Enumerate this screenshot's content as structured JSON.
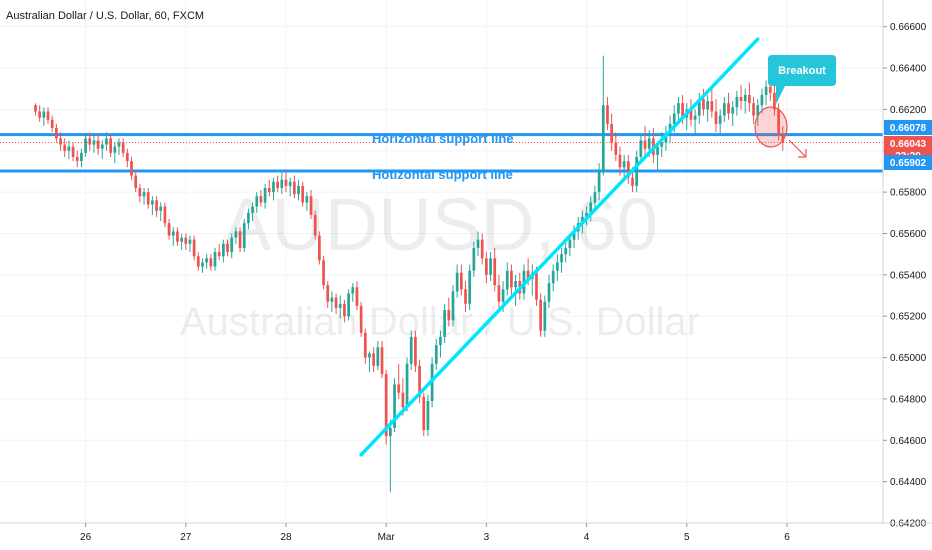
{
  "header": {
    "symbol_title": "Australian Dollar / U.S. Dollar, 60, FXCM"
  },
  "watermark": {
    "ticker": "AUDUSD, 60",
    "name": "Australian Dollar / U.S. Dollar"
  },
  "colors": {
    "up": "#26a69a",
    "down": "#ef5350",
    "support_line": "#2196f3",
    "trend_line": "#00e5ff",
    "breakout_callout": "#26c6da",
    "price_line": "#ef5350",
    "grid": "#f0f3fa"
  },
  "annotations": {
    "support_label_1": "Horizontal support line",
    "support_label_2": "Hotizontal support line",
    "breakout_label": "Breakout"
  },
  "price_badges": {
    "upper_support": "0.66078",
    "current_price": "0.66043",
    "countdown": "23:29",
    "lower_support": "0.65902"
  },
  "chart_data": {
    "type": "candlestick",
    "title": "Australian Dollar / U.S. Dollar, 60, FXCM",
    "xlabel": "",
    "ylabel": "",
    "ylim": [
      0.642,
      0.667
    ],
    "y_ticks": [
      "0.66600",
      "0.66400",
      "0.66200",
      "0.66000",
      "0.65800",
      "0.65600",
      "0.65400",
      "0.65200",
      "0.65000",
      "0.64800",
      "0.64600",
      "0.64400",
      "0.64200"
    ],
    "x_ticks": [
      {
        "label": "26",
        "x": 12
      },
      {
        "label": "27",
        "x": 36
      },
      {
        "label": "28",
        "x": 60
      },
      {
        "label": "Mar",
        "x": 84
      },
      {
        "label": "3",
        "x": 108
      },
      {
        "label": "4",
        "x": 132
      },
      {
        "label": "5",
        "x": 156
      },
      {
        "label": "6",
        "x": 180
      }
    ],
    "x_range": [
      -8.5,
      203
    ],
    "horizontal_lines": [
      0.66078,
      0.65902
    ],
    "trend_lines": [
      {
        "from": [
          78,
          0.6453
        ],
        "to": [
          173,
          0.6654
        ]
      }
    ],
    "grid": true,
    "candles": [
      [
        0.6622,
        0.6623,
        0.6617,
        0.6619
      ],
      [
        0.6619,
        0.6622,
        0.6614,
        0.6616
      ],
      [
        0.6616,
        0.6621,
        0.6612,
        0.6619
      ],
      [
        0.6619,
        0.6621,
        0.6613,
        0.6615
      ],
      [
        0.6615,
        0.6617,
        0.6609,
        0.6611
      ],
      [
        0.6611,
        0.6613,
        0.6604,
        0.6606
      ],
      [
        0.6606,
        0.6609,
        0.66,
        0.6603
      ],
      [
        0.6603,
        0.6606,
        0.6597,
        0.66
      ],
      [
        0.66,
        0.6605,
        0.6596,
        0.6602
      ],
      [
        0.6602,
        0.6604,
        0.6595,
        0.6597
      ],
      [
        0.6597,
        0.66,
        0.6592,
        0.6595
      ],
      [
        0.6595,
        0.6601,
        0.6592,
        0.6599
      ],
      [
        0.6599,
        0.6608,
        0.6597,
        0.6606
      ],
      [
        0.6606,
        0.6609,
        0.66,
        0.6603
      ],
      [
        0.6603,
        0.6608,
        0.6599,
        0.6605
      ],
      [
        0.6605,
        0.6608,
        0.6598,
        0.6601
      ],
      [
        0.6601,
        0.6605,
        0.6596,
        0.6603
      ],
      [
        0.6603,
        0.6609,
        0.66,
        0.6606
      ],
      [
        0.6606,
        0.6608,
        0.6597,
        0.6599
      ],
      [
        0.6599,
        0.6604,
        0.6594,
        0.6602
      ],
      [
        0.6602,
        0.6606,
        0.6598,
        0.6604
      ],
      [
        0.6604,
        0.6606,
        0.6597,
        0.6599
      ],
      [
        0.6599,
        0.6601,
        0.6592,
        0.6595
      ],
      [
        0.6595,
        0.6597,
        0.6586,
        0.6588
      ],
      [
        0.6588,
        0.659,
        0.658,
        0.6582
      ],
      [
        0.6582,
        0.6584,
        0.6575,
        0.6578
      ],
      [
        0.6578,
        0.6582,
        0.6574,
        0.658
      ],
      [
        0.658,
        0.6582,
        0.6572,
        0.6574
      ],
      [
        0.6574,
        0.6578,
        0.6569,
        0.6576
      ],
      [
        0.6576,
        0.6578,
        0.6568,
        0.6571
      ],
      [
        0.6571,
        0.6575,
        0.6566,
        0.6573
      ],
      [
        0.6573,
        0.6575,
        0.6563,
        0.6565
      ],
      [
        0.6565,
        0.6567,
        0.6557,
        0.6559
      ],
      [
        0.6559,
        0.6563,
        0.6554,
        0.6561
      ],
      [
        0.6561,
        0.6563,
        0.6554,
        0.6556
      ],
      [
        0.6556,
        0.656,
        0.6552,
        0.6558
      ],
      [
        0.6558,
        0.656,
        0.6552,
        0.6555
      ],
      [
        0.6555,
        0.6559,
        0.6551,
        0.6557
      ],
      [
        0.6557,
        0.6559,
        0.6547,
        0.6549
      ],
      [
        0.6549,
        0.6551,
        0.6542,
        0.6544
      ],
      [
        0.6544,
        0.6548,
        0.6541,
        0.6546
      ],
      [
        0.6546,
        0.655,
        0.6543,
        0.6548
      ],
      [
        0.6548,
        0.655,
        0.6542,
        0.6544
      ],
      [
        0.6544,
        0.6553,
        0.6542,
        0.6551
      ],
      [
        0.6551,
        0.6555,
        0.6547,
        0.6549
      ],
      [
        0.6549,
        0.6557,
        0.6546,
        0.6555
      ],
      [
        0.6555,
        0.6557,
        0.6549,
        0.6551
      ],
      [
        0.6551,
        0.656,
        0.6548,
        0.6558
      ],
      [
        0.6558,
        0.6563,
        0.6555,
        0.6561
      ],
      [
        0.6561,
        0.6563,
        0.6551,
        0.6553
      ],
      [
        0.6553,
        0.6567,
        0.6551,
        0.6565
      ],
      [
        0.6565,
        0.6572,
        0.6562,
        0.657
      ],
      [
        0.657,
        0.6575,
        0.6566,
        0.6573
      ],
      [
        0.6573,
        0.658,
        0.657,
        0.6578
      ],
      [
        0.6578,
        0.6581,
        0.6573,
        0.6575
      ],
      [
        0.6575,
        0.6584,
        0.6572,
        0.6582
      ],
      [
        0.6582,
        0.6586,
        0.6578,
        0.658
      ],
      [
        0.658,
        0.6587,
        0.6576,
        0.6585
      ],
      [
        0.6585,
        0.6588,
        0.658,
        0.6582
      ],
      [
        0.6582,
        0.659,
        0.6579,
        0.6586
      ],
      [
        0.6586,
        0.659,
        0.658,
        0.6583
      ],
      [
        0.6583,
        0.6587,
        0.6578,
        0.6585
      ],
      [
        0.6585,
        0.6588,
        0.6577,
        0.6579
      ],
      [
        0.6579,
        0.6586,
        0.6576,
        0.6583
      ],
      [
        0.6583,
        0.6585,
        0.6573,
        0.6575
      ],
      [
        0.6575,
        0.658,
        0.6571,
        0.6578
      ],
      [
        0.6578,
        0.6581,
        0.6567,
        0.6569
      ],
      [
        0.6569,
        0.6571,
        0.6557,
        0.6559
      ],
      [
        0.6559,
        0.6561,
        0.6545,
        0.6547
      ],
      [
        0.6547,
        0.6549,
        0.6533,
        0.6535
      ],
      [
        0.6535,
        0.6537,
        0.6524,
        0.6527
      ],
      [
        0.6527,
        0.6532,
        0.6522,
        0.6529
      ],
      [
        0.6529,
        0.6531,
        0.6521,
        0.6524
      ],
      [
        0.6524,
        0.653,
        0.6519,
        0.6526
      ],
      [
        0.6526,
        0.6528,
        0.6517,
        0.652
      ],
      [
        0.652,
        0.6533,
        0.6518,
        0.6531
      ],
      [
        0.6531,
        0.6536,
        0.6527,
        0.6534
      ],
      [
        0.6534,
        0.6537,
        0.6523,
        0.6525
      ],
      [
        0.6525,
        0.6527,
        0.651,
        0.6512
      ],
      [
        0.6512,
        0.6514,
        0.6497,
        0.65
      ],
      [
        0.65,
        0.6503,
        0.6493,
        0.6502
      ],
      [
        0.6502,
        0.6505,
        0.6493,
        0.6496
      ],
      [
        0.6496,
        0.6508,
        0.6494,
        0.6505
      ],
      [
        0.6505,
        0.6508,
        0.649,
        0.6492
      ],
      [
        0.6492,
        0.6494,
        0.6458,
        0.6462
      ],
      [
        0.6462,
        0.647,
        0.6435,
        0.6466
      ],
      [
        0.6466,
        0.649,
        0.6464,
        0.6487
      ],
      [
        0.6487,
        0.6497,
        0.648,
        0.6483
      ],
      [
        0.6483,
        0.649,
        0.6472,
        0.6476
      ],
      [
        0.6476,
        0.65,
        0.6474,
        0.6497
      ],
      [
        0.6497,
        0.6513,
        0.6494,
        0.651
      ],
      [
        0.651,
        0.6513,
        0.6493,
        0.6496
      ],
      [
        0.6496,
        0.6499,
        0.6478,
        0.6481
      ],
      [
        0.6481,
        0.6483,
        0.6462,
        0.6465
      ],
      [
        0.6465,
        0.6482,
        0.6462,
        0.6479
      ],
      [
        0.6479,
        0.65,
        0.6476,
        0.6497
      ],
      [
        0.6497,
        0.6509,
        0.6494,
        0.6506
      ],
      [
        0.6506,
        0.6513,
        0.65,
        0.651
      ],
      [
        0.651,
        0.6526,
        0.6507,
        0.6523
      ],
      [
        0.6523,
        0.6529,
        0.6515,
        0.6518
      ],
      [
        0.6518,
        0.6535,
        0.6515,
        0.6532
      ],
      [
        0.6532,
        0.6545,
        0.6529,
        0.6541
      ],
      [
        0.6541,
        0.6545,
        0.653,
        0.6533
      ],
      [
        0.6533,
        0.6537,
        0.6522,
        0.6526
      ],
      [
        0.6526,
        0.6545,
        0.6523,
        0.6542
      ],
      [
        0.6542,
        0.6556,
        0.6539,
        0.6553
      ],
      [
        0.6553,
        0.6561,
        0.6549,
        0.6557
      ],
      [
        0.6557,
        0.656,
        0.6545,
        0.6548
      ],
      [
        0.6548,
        0.6551,
        0.6536,
        0.654
      ],
      [
        0.654,
        0.6551,
        0.6537,
        0.6548
      ],
      [
        0.6548,
        0.6553,
        0.6532,
        0.6535
      ],
      [
        0.6535,
        0.654,
        0.6523,
        0.6527
      ],
      [
        0.6527,
        0.6537,
        0.6522,
        0.6533
      ],
      [
        0.6533,
        0.6546,
        0.653,
        0.6542
      ],
      [
        0.6542,
        0.6545,
        0.653,
        0.6534
      ],
      [
        0.6534,
        0.654,
        0.6525,
        0.6537
      ],
      [
        0.6537,
        0.6541,
        0.6528,
        0.6531
      ],
      [
        0.6531,
        0.6545,
        0.6528,
        0.6542
      ],
      [
        0.6542,
        0.6548,
        0.6535,
        0.6538
      ],
      [
        0.6538,
        0.6545,
        0.653,
        0.6541
      ],
      [
        0.6541,
        0.6544,
        0.6525,
        0.6528
      ],
      [
        0.6528,
        0.6531,
        0.651,
        0.6513
      ],
      [
        0.6513,
        0.653,
        0.651,
        0.6527
      ],
      [
        0.6527,
        0.654,
        0.6524,
        0.6536
      ],
      [
        0.6536,
        0.6545,
        0.6532,
        0.6542
      ],
      [
        0.6542,
        0.655,
        0.6537,
        0.6546
      ],
      [
        0.6546,
        0.6553,
        0.6541,
        0.655
      ],
      [
        0.655,
        0.6556,
        0.6546,
        0.6553
      ],
      [
        0.6553,
        0.656,
        0.6549,
        0.6557
      ],
      [
        0.6557,
        0.6564,
        0.6553,
        0.6561
      ],
      [
        0.6561,
        0.6568,
        0.6557,
        0.6565
      ],
      [
        0.6565,
        0.6571,
        0.656,
        0.6568
      ],
      [
        0.6568,
        0.6573,
        0.6564,
        0.657
      ],
      [
        0.657,
        0.6578,
        0.6566,
        0.6575
      ],
      [
        0.6575,
        0.6583,
        0.6572,
        0.658
      ],
      [
        0.658,
        0.6594,
        0.6576,
        0.659
      ],
      [
        0.659,
        0.6646,
        0.6588,
        0.6622
      ],
      [
        0.6622,
        0.6626,
        0.661,
        0.6613
      ],
      [
        0.6613,
        0.6618,
        0.66,
        0.6604
      ],
      [
        0.6604,
        0.6609,
        0.6595,
        0.6598
      ],
      [
        0.6598,
        0.6602,
        0.6588,
        0.6592
      ],
      [
        0.6592,
        0.6598,
        0.6586,
        0.6595
      ],
      [
        0.6595,
        0.6598,
        0.6584,
        0.6587
      ],
      [
        0.6587,
        0.6592,
        0.658,
        0.6583
      ],
      [
        0.6583,
        0.66,
        0.658,
        0.6597
      ],
      [
        0.6597,
        0.6608,
        0.6594,
        0.6605
      ],
      [
        0.6605,
        0.6612,
        0.6598,
        0.6601
      ],
      [
        0.6601,
        0.661,
        0.6597,
        0.6606
      ],
      [
        0.6606,
        0.6611,
        0.6594,
        0.6598
      ],
      [
        0.6598,
        0.6604,
        0.659,
        0.6602
      ],
      [
        0.6602,
        0.6609,
        0.6597,
        0.6604
      ],
      [
        0.6604,
        0.6612,
        0.66,
        0.6608
      ],
      [
        0.6608,
        0.6617,
        0.6604,
        0.6613
      ],
      [
        0.6613,
        0.6622,
        0.6609,
        0.6618
      ],
      [
        0.6618,
        0.6626,
        0.6614,
        0.6623
      ],
      [
        0.6623,
        0.6627,
        0.6613,
        0.6616
      ],
      [
        0.6616,
        0.6623,
        0.661,
        0.662
      ],
      [
        0.662,
        0.6625,
        0.6612,
        0.6615
      ],
      [
        0.6615,
        0.662,
        0.6608,
        0.6617
      ],
      [
        0.6617,
        0.6628,
        0.6613,
        0.6625
      ],
      [
        0.6625,
        0.663,
        0.6617,
        0.662
      ],
      [
        0.662,
        0.6627,
        0.6614,
        0.6624
      ],
      [
        0.6624,
        0.663,
        0.6616,
        0.6619
      ],
      [
        0.6619,
        0.6625,
        0.6609,
        0.6613
      ],
      [
        0.6613,
        0.662,
        0.6608,
        0.6617
      ],
      [
        0.6617,
        0.6626,
        0.6614,
        0.6623
      ],
      [
        0.6623,
        0.6628,
        0.6615,
        0.6618
      ],
      [
        0.6618,
        0.6624,
        0.6612,
        0.6621
      ],
      [
        0.6621,
        0.6629,
        0.6617,
        0.6626
      ],
      [
        0.6626,
        0.6632,
        0.662,
        0.6624
      ],
      [
        0.6624,
        0.663,
        0.6618,
        0.6627
      ],
      [
        0.6627,
        0.6633,
        0.6619,
        0.6623
      ],
      [
        0.6623,
        0.6626,
        0.6613,
        0.6617
      ],
      [
        0.6617,
        0.6625,
        0.6612,
        0.6622
      ],
      [
        0.6622,
        0.663,
        0.6618,
        0.6627
      ],
      [
        0.6627,
        0.6634,
        0.6622,
        0.6631
      ],
      [
        0.6631,
        0.6636,
        0.6624,
        0.6628
      ],
      [
        0.6628,
        0.6632,
        0.6617,
        0.662
      ],
      [
        0.662,
        0.6623,
        0.6605,
        0.6608
      ],
      [
        0.6608,
        0.6612,
        0.66,
        0.6604
      ]
    ]
  }
}
